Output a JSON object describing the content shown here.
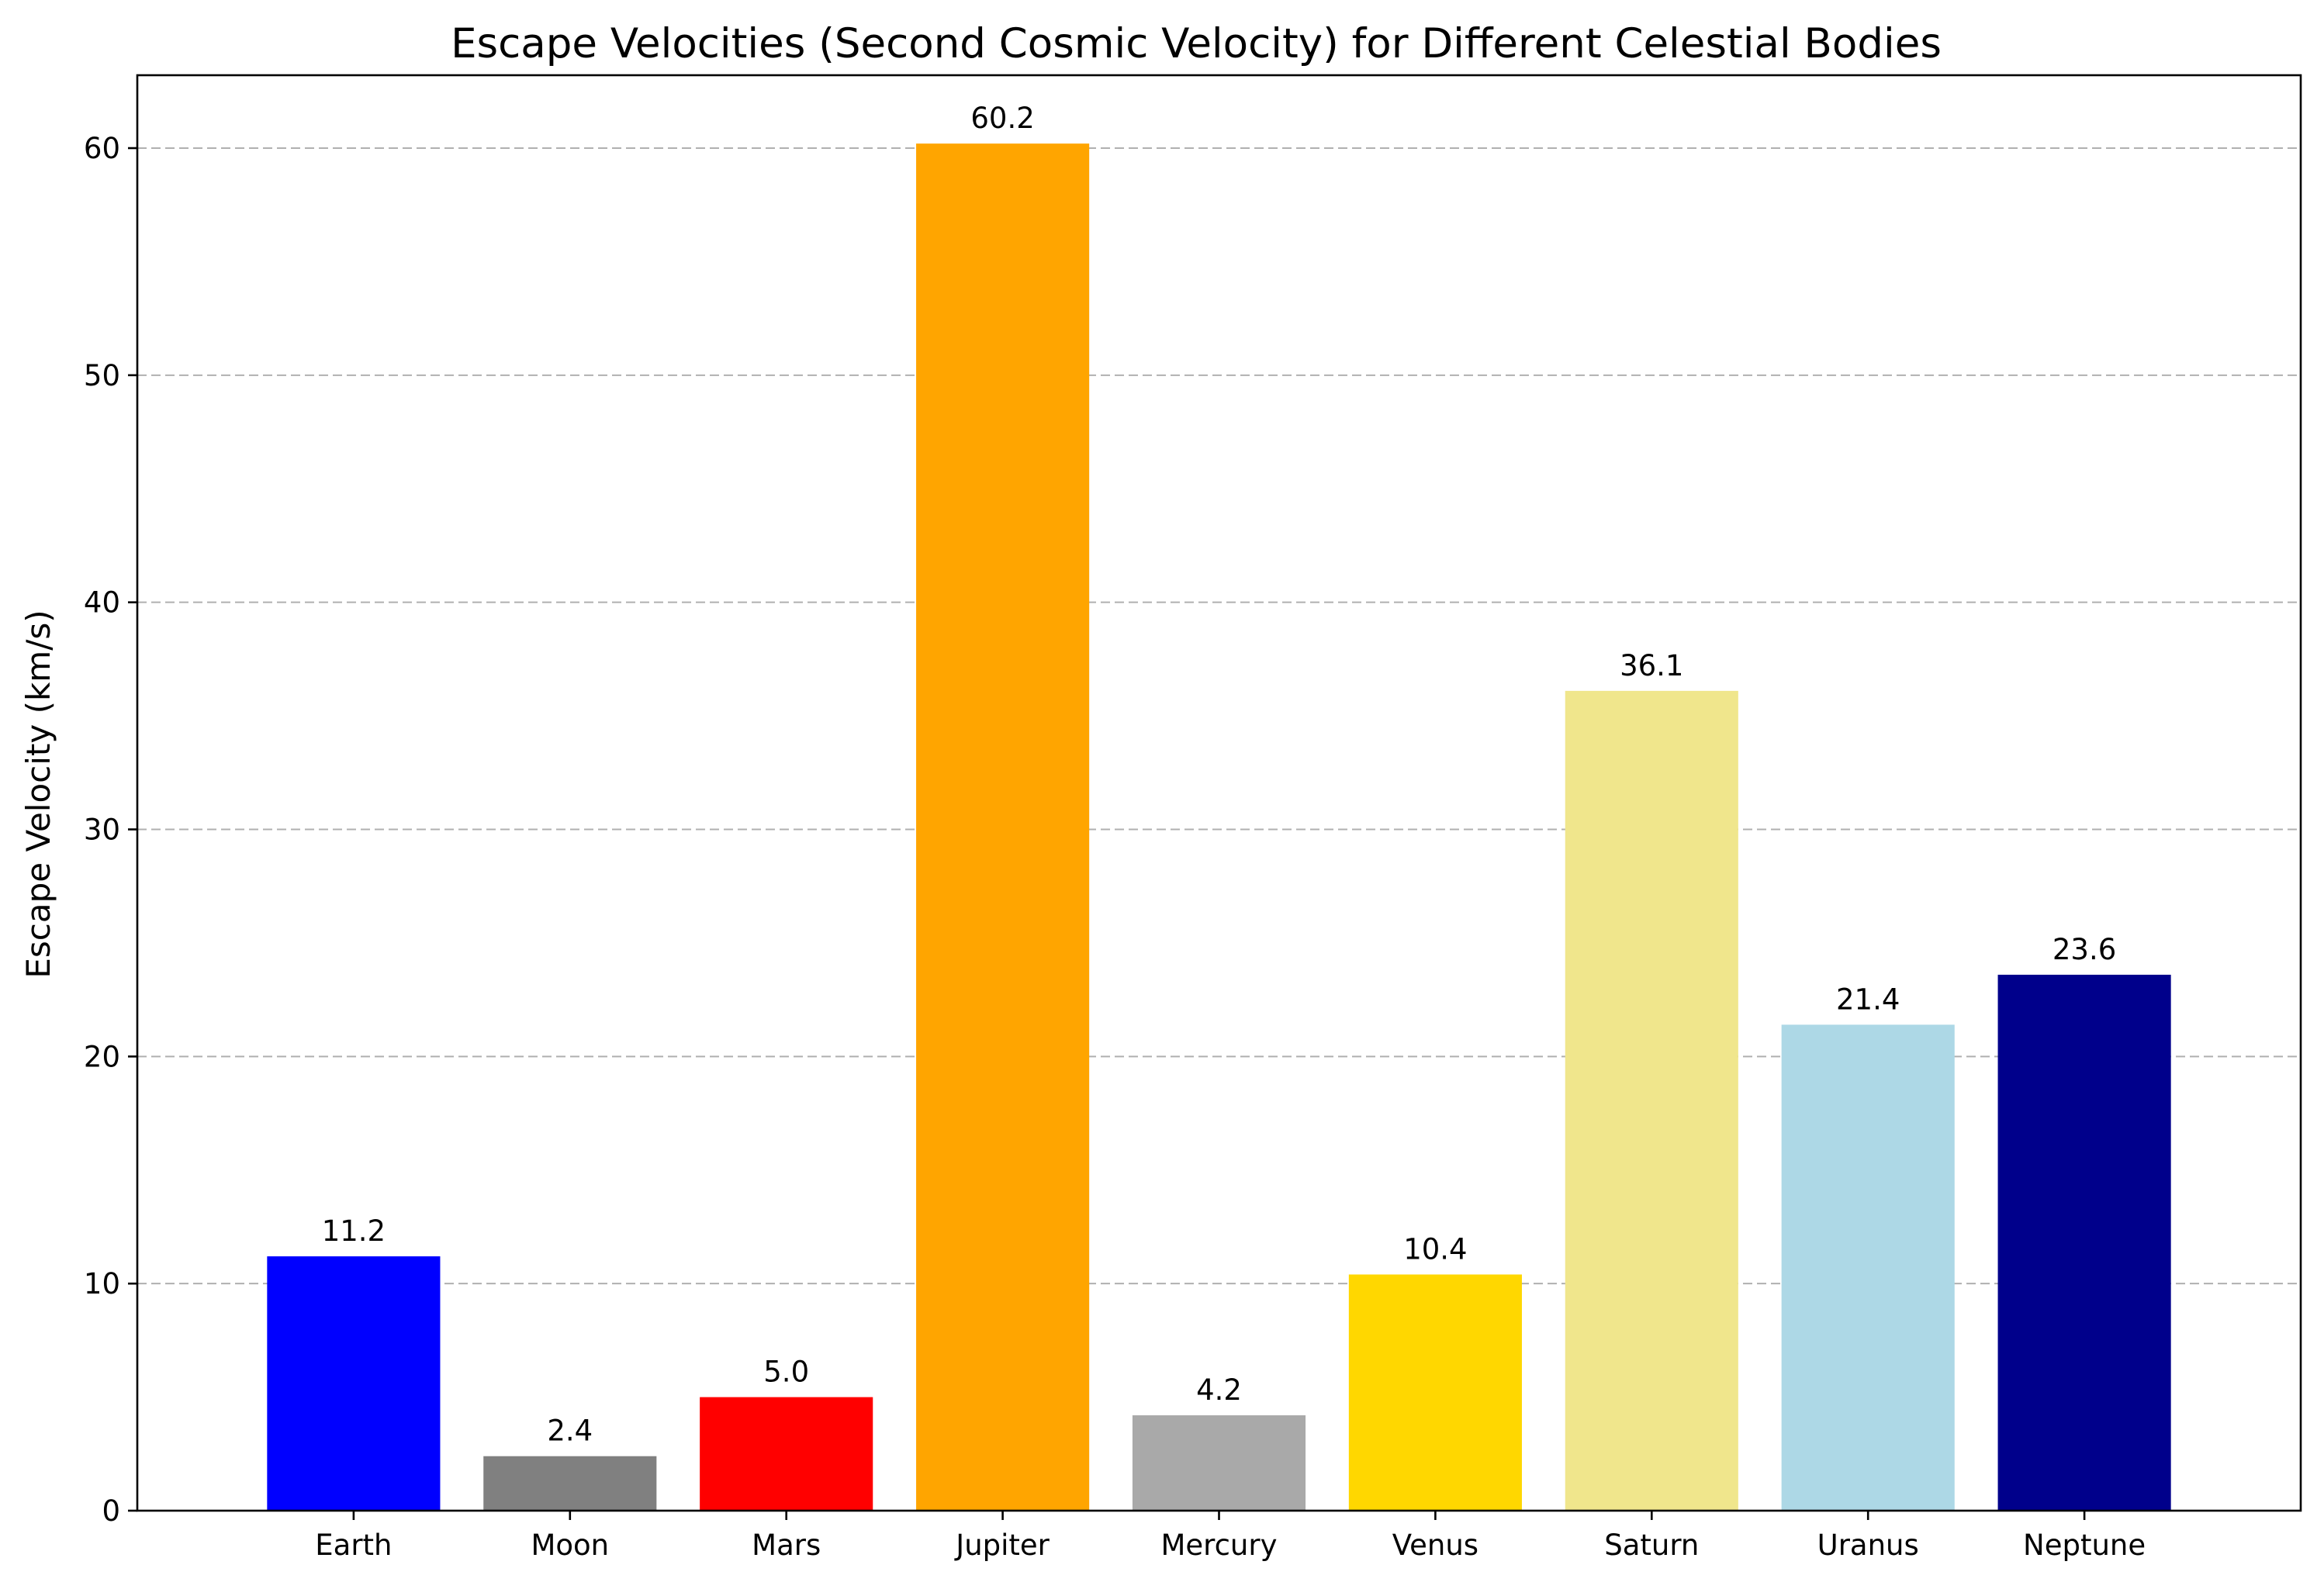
{
  "chart_data": {
    "type": "bar",
    "title": "Escape Velocities (Second Cosmic Velocity) for Different Celestial Bodies",
    "xlabel": "",
    "ylabel": "Escape Velocity (km/s)",
    "categories": [
      "Earth",
      "Moon",
      "Mars",
      "Jupiter",
      "Mercury",
      "Venus",
      "Saturn",
      "Uranus",
      "Neptune"
    ],
    "values": [
      11.2,
      2.4,
      5.0,
      60.2,
      4.2,
      10.4,
      36.1,
      21.4,
      23.6
    ],
    "value_labels": [
      "11.2",
      "2.4",
      "5.0",
      "60.2",
      "4.2",
      "10.4",
      "36.1",
      "21.4",
      "23.6"
    ],
    "colors": [
      "#0000ff",
      "#808080",
      "#ff0000",
      "#ffa500",
      "#a9a9a9",
      "#ffd700",
      "#f0e68c",
      "#add8e6",
      "#00008b"
    ],
    "ylim": [
      0,
      63.21
    ],
    "yticks": [
      0,
      10,
      20,
      30,
      40,
      50,
      60
    ],
    "ytick_labels": [
      "0",
      "10",
      "20",
      "30",
      "40",
      "50",
      "60"
    ],
    "grid": "y-dashed",
    "legend": "none"
  }
}
